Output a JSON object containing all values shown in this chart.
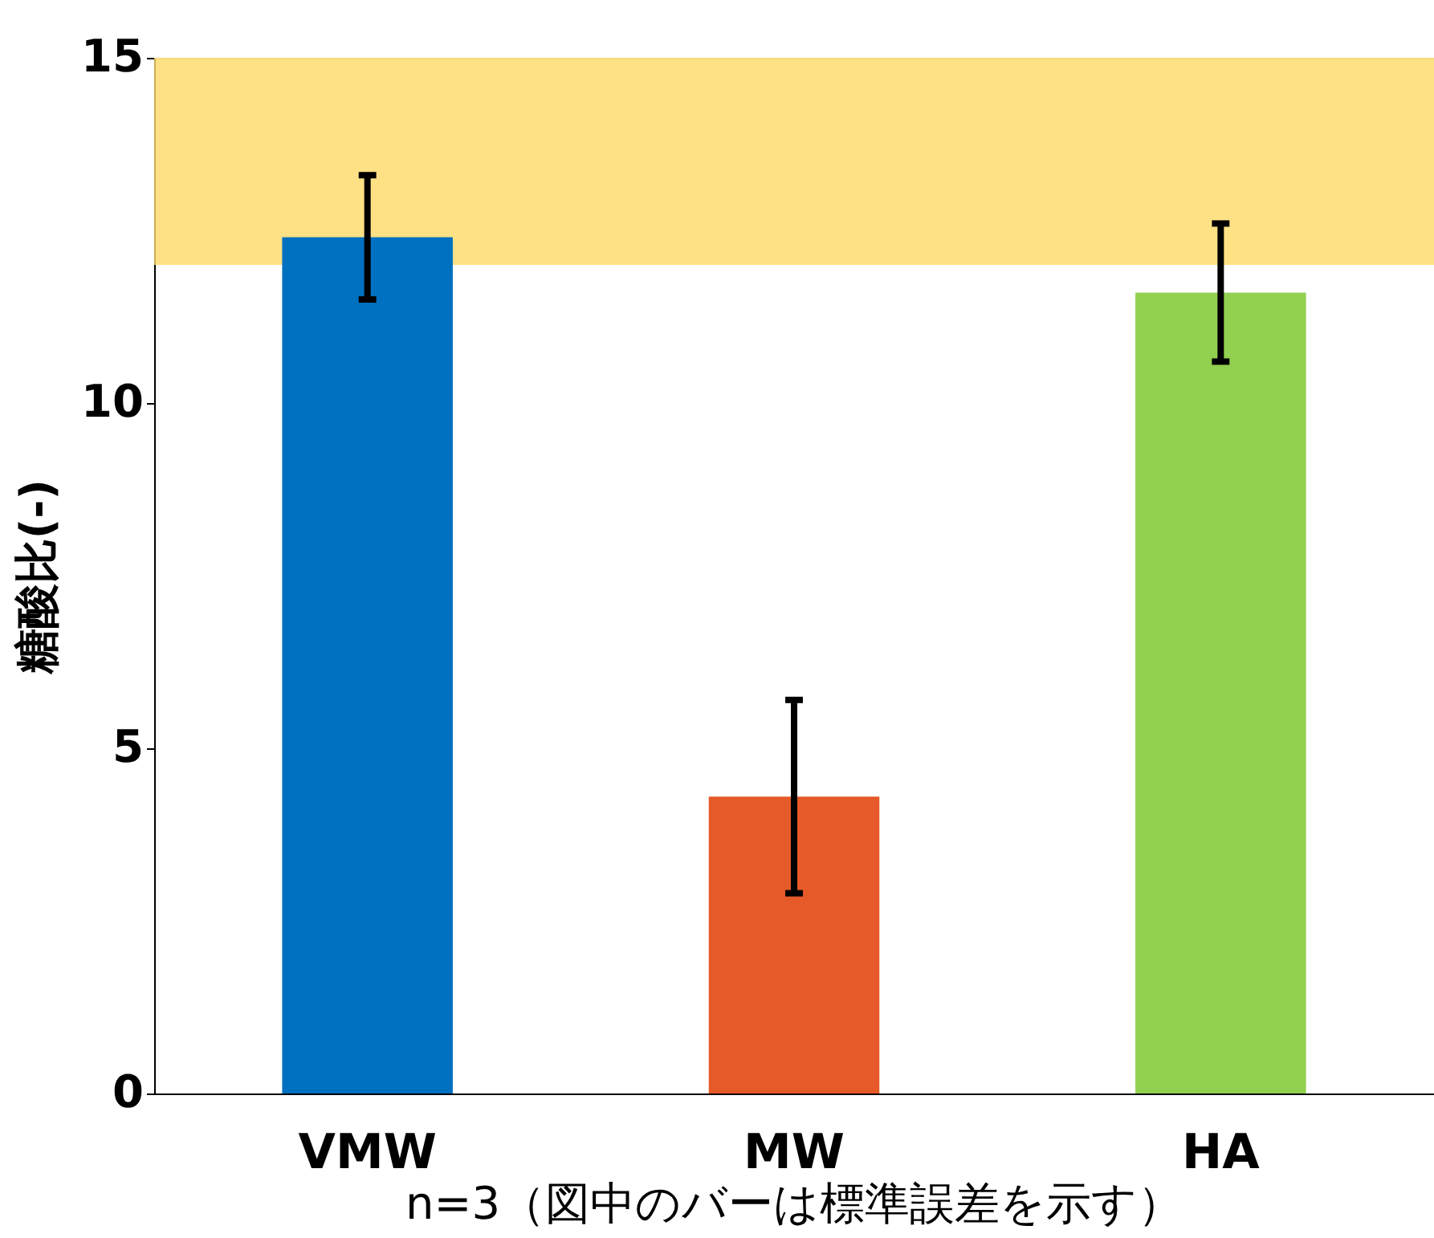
{
  "chart_data": {
    "type": "bar",
    "ylabel": "糖酸比(-)",
    "categories": [
      "VMW",
      "MW",
      "HA"
    ],
    "values": [
      12.4,
      4.3,
      11.6
    ],
    "colors": [
      "#0070c0",
      "#e55a28",
      "#92d050"
    ],
    "errors": [
      0.9,
      1.4,
      1.0
    ],
    "ylim": [
      0,
      15
    ],
    "yticks": [
      0,
      5,
      10,
      15
    ],
    "bands": [
      {
        "axis": "y",
        "from": 12,
        "to": 15,
        "color": "#ffd966"
      }
    ],
    "annotations": [
      "n=3（図中のバーは標準誤差を示す）"
    ],
    "grid": false
  }
}
